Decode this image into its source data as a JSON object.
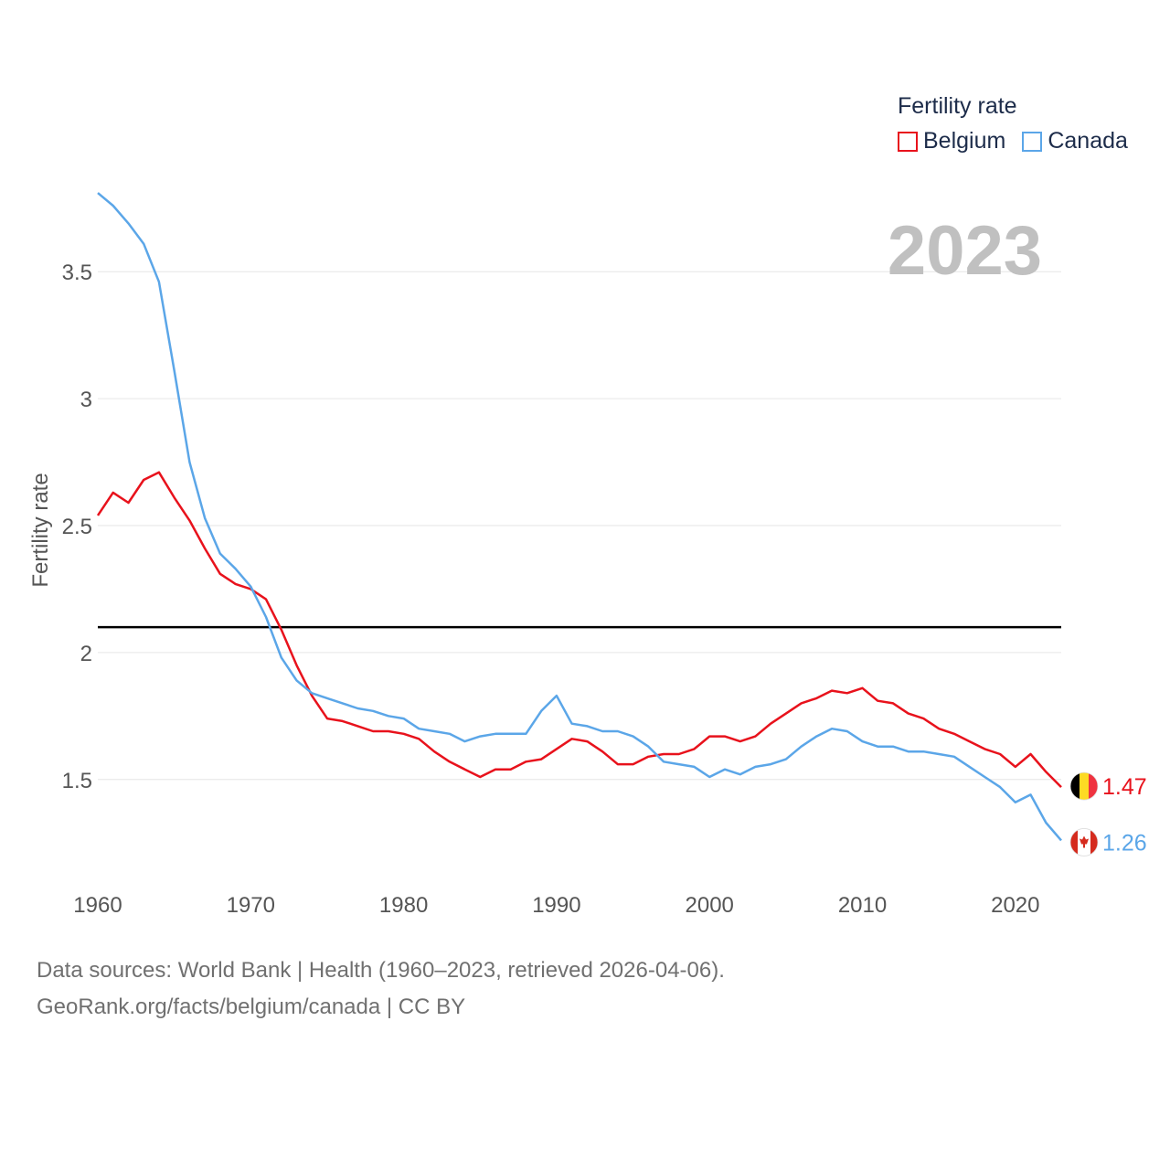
{
  "chart_data": {
    "type": "line",
    "ylabel": "Fertility rate",
    "xlabel": "",
    "year_label": "2023",
    "xlim": [
      1960,
      2023
    ],
    "ylim": [
      1.15,
      3.85
    ],
    "x_ticks": [
      1960,
      1970,
      1980,
      1990,
      2000,
      2010,
      2020
    ],
    "y_ticks": [
      1.5,
      2,
      2.5,
      3,
      3.5
    ],
    "y_tick_labels": [
      "1.5",
      "2",
      "2.5",
      "3",
      "3.5"
    ],
    "reference_line": 2.1,
    "x": [
      1960,
      1961,
      1962,
      1963,
      1964,
      1965,
      1966,
      1967,
      1968,
      1969,
      1970,
      1971,
      1972,
      1973,
      1974,
      1975,
      1976,
      1977,
      1978,
      1979,
      1980,
      1981,
      1982,
      1983,
      1984,
      1985,
      1986,
      1987,
      1988,
      1989,
      1990,
      1991,
      1992,
      1993,
      1994,
      1995,
      1996,
      1997,
      1998,
      1999,
      2000,
      2001,
      2002,
      2003,
      2004,
      2005,
      2006,
      2007,
      2008,
      2009,
      2010,
      2011,
      2012,
      2013,
      2014,
      2015,
      2016,
      2017,
      2018,
      2019,
      2020,
      2021,
      2022,
      2023
    ],
    "series": [
      {
        "name": "Belgium",
        "color": "#e8121c",
        "end_label": "1.47",
        "values": [
          2.54,
          2.63,
          2.59,
          2.68,
          2.71,
          2.61,
          2.52,
          2.41,
          2.31,
          2.27,
          2.25,
          2.21,
          2.09,
          1.95,
          1.83,
          1.74,
          1.73,
          1.71,
          1.69,
          1.69,
          1.68,
          1.66,
          1.61,
          1.57,
          1.54,
          1.51,
          1.54,
          1.54,
          1.57,
          1.58,
          1.62,
          1.66,
          1.65,
          1.61,
          1.56,
          1.56,
          1.59,
          1.6,
          1.6,
          1.62,
          1.67,
          1.67,
          1.65,
          1.67,
          1.72,
          1.76,
          1.8,
          1.82,
          1.85,
          1.84,
          1.86,
          1.81,
          1.8,
          1.76,
          1.74,
          1.7,
          1.68,
          1.65,
          1.62,
          1.6,
          1.55,
          1.6,
          1.53,
          1.47
        ]
      },
      {
        "name": "Canada",
        "color": "#5ba6e8",
        "end_label": "1.26",
        "values": [
          3.81,
          3.76,
          3.69,
          3.61,
          3.46,
          3.11,
          2.75,
          2.53,
          2.39,
          2.33,
          2.26,
          2.14,
          1.98,
          1.89,
          1.84,
          1.82,
          1.8,
          1.78,
          1.77,
          1.75,
          1.74,
          1.7,
          1.69,
          1.68,
          1.65,
          1.67,
          1.68,
          1.68,
          1.68,
          1.77,
          1.83,
          1.72,
          1.71,
          1.69,
          1.69,
          1.67,
          1.63,
          1.57,
          1.56,
          1.55,
          1.51,
          1.54,
          1.52,
          1.55,
          1.56,
          1.58,
          1.63,
          1.67,
          1.7,
          1.69,
          1.65,
          1.63,
          1.63,
          1.61,
          1.61,
          1.6,
          1.59,
          1.55,
          1.51,
          1.47,
          1.41,
          1.44,
          1.33,
          1.26
        ]
      }
    ]
  },
  "legend": {
    "title": "Fertility rate",
    "items": [
      {
        "label": "Belgium",
        "color": "#e8121c"
      },
      {
        "label": "Canada",
        "color": "#5ba6e8"
      }
    ]
  },
  "source": {
    "line1": "Data sources: World Bank | Health (1960–2023, retrieved 2026-04-06).",
    "line2": "GeoRank.org/facts/belgium/canada | CC BY"
  }
}
